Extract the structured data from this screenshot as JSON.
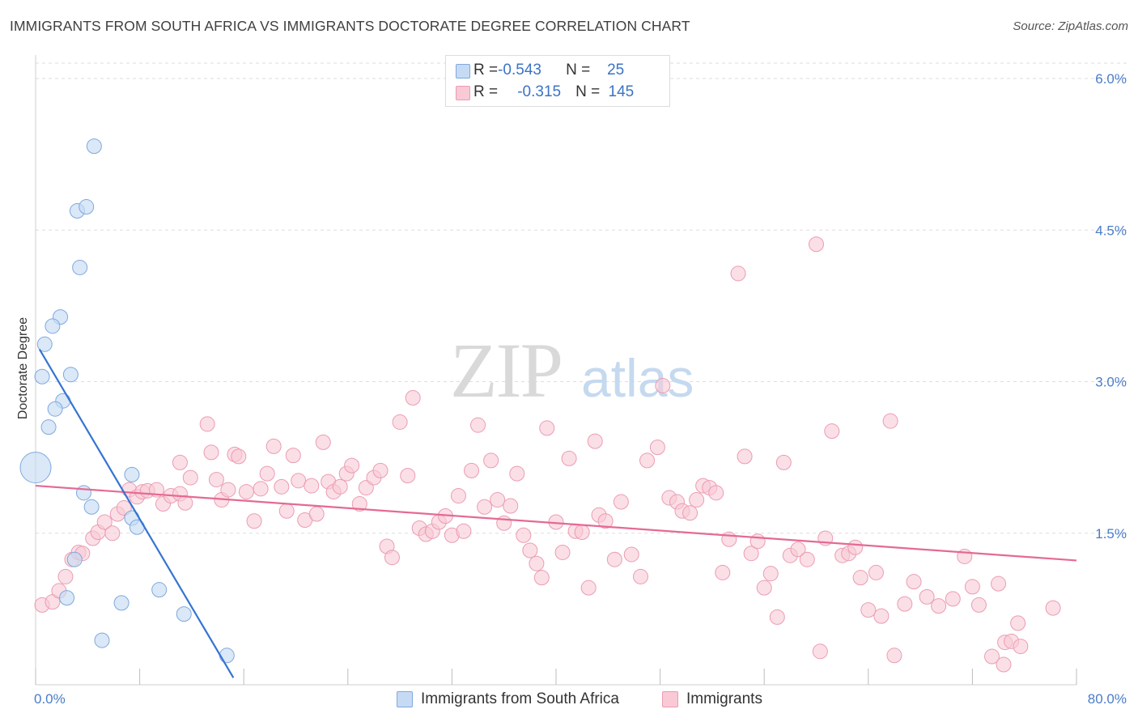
{
  "title": "IMMIGRANTS FROM SOUTH AFRICA VS IMMIGRANTS DOCTORATE DEGREE CORRELATION CHART",
  "source_prefix": "Source: ",
  "source_name": "ZipAtlas.com",
  "watermark": {
    "zip": "ZIP",
    "atlas": "atlas"
  },
  "legend": {
    "r_label": "R = ",
    "n_label": "N = ",
    "blue": {
      "r": "-0.543",
      "n": "25"
    },
    "pink": {
      "r": "-0.315",
      "n": "145"
    }
  },
  "colors": {
    "blue_fill": "#c6dbf3",
    "blue_stroke": "#7fa8df",
    "blue_line": "#3574d3",
    "pink_fill": "#f9c9d6",
    "pink_stroke": "#eb9cb2",
    "pink_line": "#e56a93",
    "grid": "#dddddd",
    "axis_label": "#4a7cc9"
  },
  "chart_data": {
    "type": "scatter",
    "title": "IMMIGRANTS FROM SOUTH AFRICA VS IMMIGRANTS DOCTORATE DEGREE CORRELATION CHART",
    "xlabel": "",
    "ylabel": "Doctorate Degree",
    "xlim": [
      0,
      80
    ],
    "ylim": [
      0,
      6.15
    ],
    "x_tick_labels": {
      "0": "0.0%",
      "80": "80.0%"
    },
    "y_ticks": [
      1.5,
      3.0,
      4.5,
      6.0
    ],
    "y_tick_labels": [
      "1.5%",
      "3.0%",
      "4.5%",
      "6.0%"
    ],
    "grid": true,
    "legend_position": "top-center",
    "series": [
      {
        "name": "Immigrants from South Africa",
        "color": "blue",
        "trend": {
          "x": [
            0.3,
            15.2
          ],
          "y": [
            3.32,
            0.07
          ]
        },
        "points": [
          [
            4.5,
            5.33,
            9
          ],
          [
            3.2,
            4.69,
            9
          ],
          [
            3.9,
            4.73,
            9
          ],
          [
            3.4,
            4.13,
            9
          ],
          [
            1.9,
            3.64,
            9
          ],
          [
            1.3,
            3.55,
            9
          ],
          [
            0.7,
            3.37,
            9
          ],
          [
            0.5,
            3.05,
            9
          ],
          [
            2.7,
            3.07,
            9
          ],
          [
            2.1,
            2.81,
            9
          ],
          [
            1.5,
            2.73,
            9
          ],
          [
            1.0,
            2.55,
            9
          ],
          [
            0.0,
            2.15,
            19
          ],
          [
            7.4,
            2.08,
            9
          ],
          [
            3.7,
            1.9,
            9
          ],
          [
            4.3,
            1.76,
            9
          ],
          [
            7.4,
            1.65,
            9
          ],
          [
            7.8,
            1.56,
            9
          ],
          [
            3.0,
            1.24,
            9
          ],
          [
            2.4,
            0.86,
            9
          ],
          [
            6.6,
            0.81,
            9
          ],
          [
            9.5,
            0.94,
            9
          ],
          [
            11.4,
            0.7,
            9
          ],
          [
            5.1,
            0.44,
            9
          ],
          [
            14.7,
            0.29,
            9
          ]
        ]
      },
      {
        "name": "Immigrants",
        "color": "pink",
        "trend": {
          "x": [
            0.0,
            80.0
          ],
          "y": [
            1.97,
            1.23
          ]
        },
        "points": [
          [
            0.5,
            0.79
          ],
          [
            1.3,
            0.82
          ],
          [
            1.8,
            0.93
          ],
          [
            2.3,
            1.07
          ],
          [
            2.8,
            1.24
          ],
          [
            3.3,
            1.31
          ],
          [
            3.6,
            1.3
          ],
          [
            4.4,
            1.45
          ],
          [
            4.8,
            1.51
          ],
          [
            5.3,
            1.61
          ],
          [
            5.9,
            1.5
          ],
          [
            6.3,
            1.69
          ],
          [
            6.8,
            1.75
          ],
          [
            7.2,
            1.93
          ],
          [
            7.8,
            1.86
          ],
          [
            8.2,
            1.91
          ],
          [
            8.6,
            1.92
          ],
          [
            9.3,
            1.93
          ],
          [
            9.8,
            1.79
          ],
          [
            10.4,
            1.87
          ],
          [
            11.1,
            1.89
          ],
          [
            11.5,
            1.8
          ],
          [
            11.1,
            2.2
          ],
          [
            11.9,
            2.05
          ],
          [
            13.2,
            2.58
          ],
          [
            13.5,
            2.3
          ],
          [
            13.9,
            2.03
          ],
          [
            14.3,
            1.83
          ],
          [
            14.8,
            1.93
          ],
          [
            15.3,
            2.28
          ],
          [
            15.6,
            2.26
          ],
          [
            16.2,
            1.91
          ],
          [
            16.8,
            1.62
          ],
          [
            17.3,
            1.94
          ],
          [
            17.8,
            2.09
          ],
          [
            18.3,
            2.36
          ],
          [
            18.9,
            1.96
          ],
          [
            19.3,
            1.72
          ],
          [
            19.8,
            2.27
          ],
          [
            20.2,
            2.02
          ],
          [
            20.7,
            1.63
          ],
          [
            21.2,
            1.97
          ],
          [
            21.6,
            1.69
          ],
          [
            22.1,
            2.4
          ],
          [
            22.5,
            2.01
          ],
          [
            22.9,
            1.91
          ],
          [
            23.4,
            1.96
          ],
          [
            23.9,
            2.09
          ],
          [
            24.3,
            2.17
          ],
          [
            24.9,
            1.79
          ],
          [
            25.4,
            1.95
          ],
          [
            26.0,
            2.05
          ],
          [
            26.5,
            2.12
          ],
          [
            27.0,
            1.37
          ],
          [
            27.4,
            1.26
          ],
          [
            28.0,
            2.6
          ],
          [
            28.6,
            2.07
          ],
          [
            29.0,
            2.84
          ],
          [
            29.5,
            1.55
          ],
          [
            30.0,
            1.49
          ],
          [
            30.5,
            1.52
          ],
          [
            31.0,
            1.61
          ],
          [
            31.5,
            1.67
          ],
          [
            32.0,
            1.48
          ],
          [
            32.5,
            1.87
          ],
          [
            32.9,
            1.52
          ],
          [
            33.5,
            2.12
          ],
          [
            34.0,
            2.57
          ],
          [
            34.5,
            1.76
          ],
          [
            35.0,
            2.22
          ],
          [
            35.5,
            1.83
          ],
          [
            36.0,
            1.6
          ],
          [
            36.5,
            1.77
          ],
          [
            37.0,
            2.09
          ],
          [
            37.5,
            1.48
          ],
          [
            38.0,
            1.33
          ],
          [
            38.5,
            1.2
          ],
          [
            38.9,
            1.06
          ],
          [
            39.3,
            2.54
          ],
          [
            40.0,
            1.61
          ],
          [
            40.5,
            1.31
          ],
          [
            41.0,
            2.24
          ],
          [
            41.5,
            1.52
          ],
          [
            42.0,
            1.51
          ],
          [
            42.5,
            0.96
          ],
          [
            43.0,
            2.41
          ],
          [
            43.3,
            1.68
          ],
          [
            43.8,
            1.62
          ],
          [
            44.5,
            1.24
          ],
          [
            45.0,
            1.81
          ],
          [
            45.8,
            1.29
          ],
          [
            46.5,
            1.07
          ],
          [
            47.0,
            2.22
          ],
          [
            47.8,
            2.35
          ],
          [
            48.2,
            2.96
          ],
          [
            48.7,
            1.85
          ],
          [
            49.3,
            1.81
          ],
          [
            49.7,
            1.72
          ],
          [
            50.3,
            1.7
          ],
          [
            50.8,
            1.83
          ],
          [
            51.3,
            1.97
          ],
          [
            51.8,
            1.95
          ],
          [
            52.3,
            1.9
          ],
          [
            52.8,
            1.11
          ],
          [
            53.3,
            1.44
          ],
          [
            54.0,
            4.07
          ],
          [
            54.5,
            2.26
          ],
          [
            55.0,
            1.3
          ],
          [
            55.5,
            1.42
          ],
          [
            56.0,
            0.96
          ],
          [
            56.5,
            1.1
          ],
          [
            57.0,
            0.67
          ],
          [
            57.5,
            2.2
          ],
          [
            58.0,
            1.28
          ],
          [
            58.6,
            1.34
          ],
          [
            59.3,
            1.24
          ],
          [
            60.0,
            4.36
          ],
          [
            60.3,
            0.33
          ],
          [
            60.7,
            1.45
          ],
          [
            61.2,
            2.51
          ],
          [
            62.0,
            1.28
          ],
          [
            62.5,
            1.3
          ],
          [
            63.0,
            1.36
          ],
          [
            63.4,
            1.06
          ],
          [
            64.0,
            0.74
          ],
          [
            64.6,
            1.11
          ],
          [
            65.0,
            0.68
          ],
          [
            65.7,
            2.61
          ],
          [
            66.0,
            0.29
          ],
          [
            66.8,
            0.8
          ],
          [
            67.5,
            1.02
          ],
          [
            68.5,
            0.87
          ],
          [
            69.4,
            0.78
          ],
          [
            70.5,
            0.85
          ],
          [
            71.4,
            1.27
          ],
          [
            72.0,
            0.97
          ],
          [
            72.5,
            0.79
          ],
          [
            73.5,
            0.28
          ],
          [
            74.0,
            1.0
          ],
          [
            74.5,
            0.42
          ],
          [
            75.0,
            0.43
          ],
          [
            75.5,
            0.61
          ],
          [
            75.7,
            0.38
          ],
          [
            78.2,
            0.76
          ],
          [
            74.4,
            0.2
          ]
        ]
      }
    ]
  },
  "bottom_legend": {
    "blue": "Immigrants from South Africa",
    "pink": "Immigrants"
  }
}
